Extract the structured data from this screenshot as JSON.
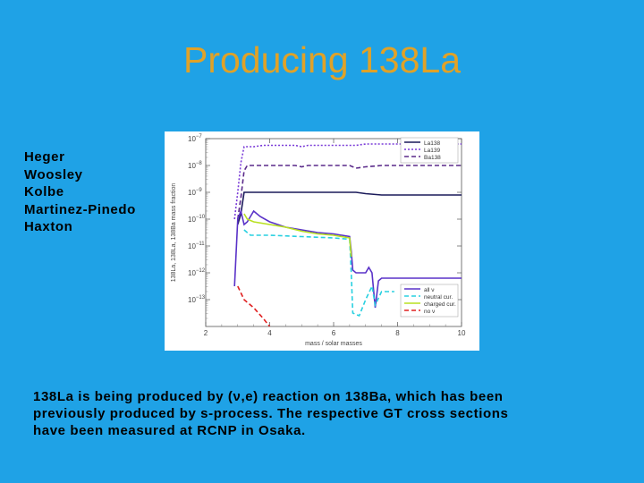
{
  "slide": {
    "title": "Producing 138La",
    "authors": [
      "Heger",
      "Woosley",
      "Kolbe",
      "Martinez-Pinedo",
      "Haxton"
    ],
    "caption_lines": [
      "138La is being produced by (ν,e) reaction on 138Ba, which has been",
      "previously produced by s-process. The respective GT cross sections",
      "have been measured at RCNP in Osaka."
    ]
  },
  "chart_data": {
    "type": "line",
    "xlabel": "mass / solar masses",
    "ylabel": "138La, 138La, 138Ba mass fraction",
    "xlim": [
      2,
      10
    ],
    "y_log": true,
    "ylim_exponents": [
      -14,
      -7
    ],
    "x_ticks": [
      "2",
      "4",
      "6",
      "8",
      "10"
    ],
    "y_ticks": [
      {
        "base": "10",
        "exp": "−7",
        "e": -7
      },
      {
        "base": "10",
        "exp": "−8",
        "e": -8
      },
      {
        "base": "10",
        "exp": "−9",
        "e": -9
      },
      {
        "base": "10",
        "exp": "−10",
        "e": -10
      },
      {
        "base": "10",
        "exp": "−11",
        "e": -11
      },
      {
        "base": "10",
        "exp": "−12",
        "e": -12
      },
      {
        "base": "10",
        "exp": "−13",
        "e": -13
      }
    ],
    "legend_top": [
      {
        "name": "La138",
        "color": "#1a1a5a",
        "dash": "0"
      },
      {
        "name": "La139",
        "color": "#7a3bd8",
        "dash": "2,2"
      },
      {
        "name": "Ba138",
        "color": "#5a2a8a",
        "dash": "5,3"
      }
    ],
    "legend_bottom": [
      {
        "name": "all ν",
        "color": "#5a32c8",
        "dash": "0"
      },
      {
        "name": "neutral cur.",
        "color": "#28d0e0",
        "dash": "5,3"
      },
      {
        "name": "charged cur.",
        "color": "#b8e020",
        "dash": "0"
      },
      {
        "name": "no ν",
        "color": "#e02020",
        "dash": "5,3"
      }
    ],
    "series": [
      {
        "name": "La139",
        "color": "#7a3bd8",
        "dash": "2,2",
        "points": [
          [
            2.9,
            -10.0
          ],
          [
            3.0,
            -9.0
          ],
          [
            3.1,
            -7.9
          ],
          [
            3.2,
            -7.3
          ],
          [
            3.5,
            -7.3
          ],
          [
            3.8,
            -7.25
          ],
          [
            4.8,
            -7.25
          ],
          [
            5.0,
            -7.3
          ],
          [
            5.2,
            -7.25
          ],
          [
            6.0,
            -7.25
          ],
          [
            6.7,
            -7.25
          ],
          [
            7.0,
            -7.2
          ],
          [
            7.5,
            -7.2
          ],
          [
            10,
            -7.2
          ]
        ]
      },
      {
        "name": "Ba138",
        "color": "#5a2a8a",
        "dash": "5,3",
        "points": [
          [
            3.0,
            -10.0
          ],
          [
            3.1,
            -9.2
          ],
          [
            3.2,
            -8.2
          ],
          [
            3.3,
            -8.0
          ],
          [
            3.6,
            -8.0
          ],
          [
            4.8,
            -8.0
          ],
          [
            5.0,
            -8.05
          ],
          [
            5.2,
            -8.0
          ],
          [
            6.5,
            -8.0
          ],
          [
            6.7,
            -8.1
          ],
          [
            7.0,
            -8.05
          ],
          [
            7.5,
            -8.0
          ],
          [
            10,
            -8.0
          ]
        ]
      },
      {
        "name": "La138",
        "color": "#1a1a5a",
        "dash": "0",
        "points": [
          [
            3.0,
            -10.2
          ],
          [
            3.1,
            -9.8
          ],
          [
            3.2,
            -9.0
          ],
          [
            3.3,
            -9.0
          ],
          [
            6.0,
            -9.0
          ],
          [
            6.5,
            -9.0
          ],
          [
            6.7,
            -9.0
          ],
          [
            7.0,
            -9.05
          ],
          [
            7.5,
            -9.1
          ],
          [
            10,
            -9.1
          ]
        ]
      },
      {
        "name": "all ν",
        "color": "#5a32c8",
        "dash": "0",
        "points": [
          [
            2.9,
            -12.5
          ],
          [
            3.0,
            -10.0
          ],
          [
            3.1,
            -9.7
          ],
          [
            3.2,
            -10.2
          ],
          [
            3.3,
            -10.1
          ],
          [
            3.5,
            -9.7
          ],
          [
            3.7,
            -9.9
          ],
          [
            4.0,
            -10.1
          ],
          [
            4.5,
            -10.3
          ],
          [
            5.0,
            -10.4
          ],
          [
            5.5,
            -10.5
          ],
          [
            6.0,
            -10.55
          ],
          [
            6.5,
            -10.65
          ],
          [
            6.55,
            -11.2
          ],
          [
            6.6,
            -11.9
          ],
          [
            6.7,
            -12.0
          ],
          [
            7.0,
            -12.0
          ],
          [
            7.1,
            -11.8
          ],
          [
            7.2,
            -12.0
          ],
          [
            7.3,
            -13.3
          ],
          [
            7.4,
            -12.3
          ],
          [
            7.5,
            -12.2
          ],
          [
            8.0,
            -12.2
          ],
          [
            10,
            -12.2
          ]
        ]
      },
      {
        "name": "neutral cur.",
        "color": "#28d0e0",
        "dash": "5,3",
        "points": [
          [
            3.2,
            -10.4
          ],
          [
            3.4,
            -10.6
          ],
          [
            4.0,
            -10.6
          ],
          [
            5.0,
            -10.65
          ],
          [
            6.0,
            -10.7
          ],
          [
            6.5,
            -10.75
          ],
          [
            6.55,
            -12.0
          ],
          [
            6.6,
            -13.5
          ],
          [
            6.8,
            -13.6
          ],
          [
            7.0,
            -13.0
          ],
          [
            7.2,
            -12.5
          ],
          [
            7.3,
            -13.2
          ],
          [
            7.5,
            -12.7
          ],
          [
            7.9,
            -12.7
          ]
        ]
      },
      {
        "name": "charged cur.",
        "color": "#b8e020",
        "dash": "0",
        "points": [
          [
            3.2,
            -9.8
          ],
          [
            3.3,
            -10.0
          ],
          [
            3.5,
            -10.1
          ],
          [
            4.0,
            -10.2
          ],
          [
            4.5,
            -10.3
          ],
          [
            5.0,
            -10.45
          ],
          [
            5.5,
            -10.55
          ],
          [
            6.0,
            -10.6
          ],
          [
            6.5,
            -10.7
          ],
          [
            6.55,
            -11.4
          ]
        ]
      },
      {
        "name": "no ν",
        "color": "#e02020",
        "dash": "5,3",
        "points": [
          [
            3.0,
            -12.5
          ],
          [
            3.2,
            -13.0
          ],
          [
            3.5,
            -13.3
          ],
          [
            3.8,
            -13.7
          ],
          [
            4.0,
            -14.0
          ]
        ]
      }
    ]
  }
}
